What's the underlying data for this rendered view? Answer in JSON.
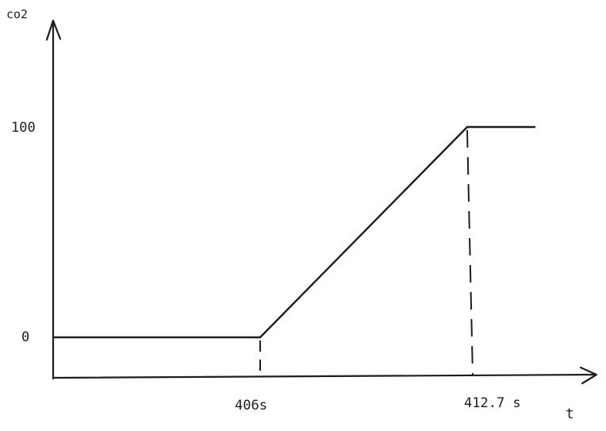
{
  "chart_data": {
    "type": "line",
    "title": "",
    "xlabel": "t",
    "ylabel": "co2",
    "y_tick_labels": [
      "0",
      "100"
    ],
    "x_tick_labels": [
      "406s",
      "412.7 s"
    ],
    "series": [
      {
        "points": [
          {
            "x": null,
            "y": 0,
            "note_x": "start"
          },
          {
            "x": 406,
            "y": 0
          },
          {
            "x": 412.7,
            "y": 100
          },
          {
            "x": null,
            "y": 100,
            "note_x": "end"
          }
        ]
      }
    ],
    "line_color": "#1e1e1e",
    "grid": false,
    "legend": "none"
  }
}
